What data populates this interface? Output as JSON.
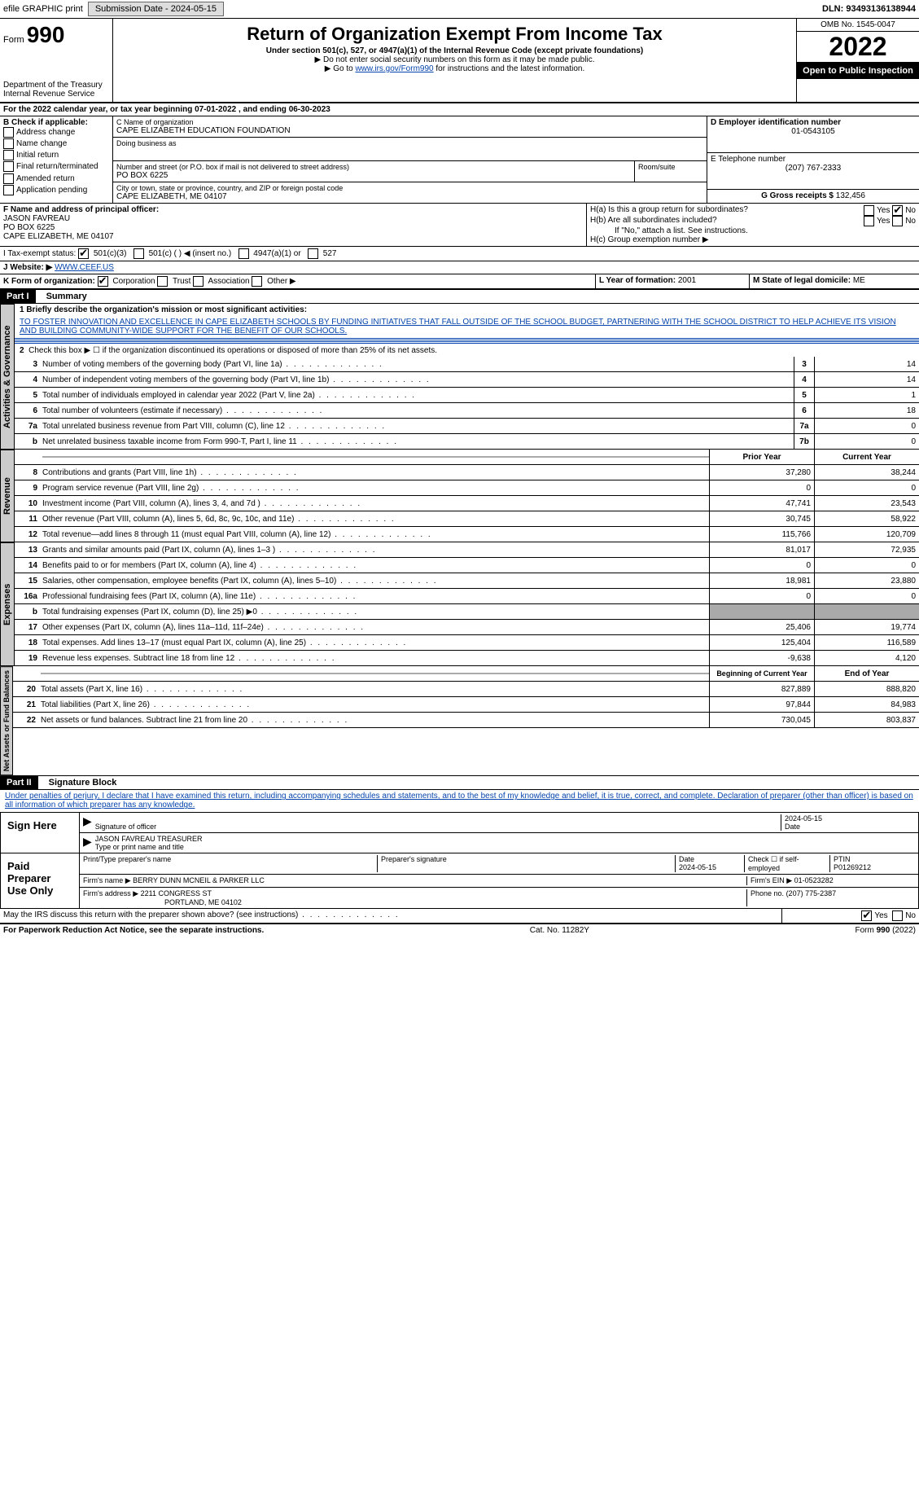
{
  "topbar": {
    "efile": "efile GRAPHIC print",
    "submission_label": "Submission Date - 2024-05-15",
    "dln": "DLN: 93493136138944"
  },
  "header": {
    "form_label": "Form",
    "form_no": "990",
    "title": "Return of Organization Exempt From Income Tax",
    "sub": "Under section 501(c), 527, or 4947(a)(1) of the Internal Revenue Code (except private foundations)",
    "note1": "▶ Do not enter social security numbers on this form as it may be made public.",
    "note2_pre": "▶ Go to ",
    "note2_link": "www.irs.gov/Form990",
    "note2_post": " for instructions and the latest information.",
    "dept": "Department of the Treasury",
    "irs": "Internal Revenue Service",
    "omb": "OMB No. 1545-0047",
    "year": "2022",
    "open": "Open to Public Inspection"
  },
  "A": {
    "text": "For the 2022 calendar year, or tax year beginning 07-01-2022    , and ending 06-30-2023"
  },
  "B": {
    "label": "B Check if applicable:",
    "items": [
      "Address change",
      "Name change",
      "Initial return",
      "Final return/terminated",
      "Amended return",
      "Application pending"
    ]
  },
  "C": {
    "name_label": "C Name of organization",
    "name": "CAPE ELIZABETH EDUCATION FOUNDATION",
    "dba_label": "Doing business as",
    "dba": "",
    "street_label": "Number and street (or P.O. box if mail is not delivered to street address)",
    "room_label": "Room/suite",
    "street": "PO BOX 6225",
    "city_label": "City or town, state or province, country, and ZIP or foreign postal code",
    "city": "CAPE ELIZABETH, ME  04107"
  },
  "D": {
    "label": "D Employer identification number",
    "ein": "01-0543105"
  },
  "E": {
    "label": "E Telephone number",
    "phone": "(207) 767-2333"
  },
  "G": {
    "label": "G Gross receipts $",
    "amount": "132,456"
  },
  "F": {
    "label": "F  Name and address of principal officer:",
    "name": "JASON FAVREAU",
    "line2": "PO BOX 6225",
    "line3": "CAPE ELIZABETH, ME  04107"
  },
  "H": {
    "a": "H(a)  Is this a group return for subordinates?",
    "b": "H(b)  Are all subordinates included?",
    "note": "If \"No,\" attach a list. See instructions.",
    "c": "H(c)  Group exemption number ▶",
    "yes": "Yes",
    "no": "No"
  },
  "I": {
    "label": "I    Tax-exempt status:",
    "c3": "501(c)(3)",
    "c": "501(c) (    ) ◀ (insert no.)",
    "a": "4947(a)(1) or",
    "s": "527"
  },
  "J": {
    "label": "J    Website: ▶",
    "url": "WWW.CEEF.US"
  },
  "K": {
    "label": "K Form of organization:",
    "corp": "Corporation",
    "trust": "Trust",
    "assoc": "Association",
    "other": "Other ▶"
  },
  "L": {
    "label": "L Year of formation:",
    "val": "2001"
  },
  "M": {
    "label": "M State of legal domicile:",
    "val": "ME"
  },
  "part1": {
    "hdr": "Part I",
    "title": "Summary",
    "l1_label": "1  Briefly describe the organization's mission or most significant activities:",
    "l1_text": "TO FOSTER INNOVATION AND EXCELLENCE IN CAPE ELIZABETH SCHOOLS BY FUNDING INITIATIVES THAT FALL OUTSIDE OF THE SCHOOL BUDGET, PARTNERING WITH THE SCHOOL DISTRICT TO HELP ACHIEVE ITS VISION AND BUILDING COMMUNITY-WIDE SUPPORT FOR THE BENEFIT OF OUR SCHOOLS.",
    "l2": "Check this box ▶ ☐  if the organization discontinued its operations or disposed of more than 25% of its net assets.",
    "tabs": {
      "gov": "Activities & Governance",
      "rev": "Revenue",
      "exp": "Expenses",
      "net": "Net Assets or Fund Balances"
    },
    "th_prior": "Prior Year",
    "th_curr": "Current Year",
    "th_boy": "Beginning of Current Year",
    "th_eoy": "End of Year",
    "gov_lines": [
      {
        "n": "3",
        "t": "Number of voting members of the governing body (Part VI, line 1a)",
        "box": "3",
        "v": "14"
      },
      {
        "n": "4",
        "t": "Number of independent voting members of the governing body (Part VI, line 1b)",
        "box": "4",
        "v": "14"
      },
      {
        "n": "5",
        "t": "Total number of individuals employed in calendar year 2022 (Part V, line 2a)",
        "box": "5",
        "v": "1"
      },
      {
        "n": "6",
        "t": "Total number of volunteers (estimate if necessary)",
        "box": "6",
        "v": "18"
      },
      {
        "n": "7a",
        "t": "Total unrelated business revenue from Part VIII, column (C), line 12",
        "box": "7a",
        "v": "0"
      },
      {
        "n": "b",
        "t": "Net unrelated business taxable income from Form 990-T, Part I, line 11",
        "box": "7b",
        "v": "0"
      }
    ],
    "rev_lines": [
      {
        "n": "8",
        "t": "Contributions and grants (Part VIII, line 1h)",
        "p": "37,280",
        "c": "38,244"
      },
      {
        "n": "9",
        "t": "Program service revenue (Part VIII, line 2g)",
        "p": "0",
        "c": "0"
      },
      {
        "n": "10",
        "t": "Investment income (Part VIII, column (A), lines 3, 4, and 7d )",
        "p": "47,741",
        "c": "23,543"
      },
      {
        "n": "11",
        "t": "Other revenue (Part VIII, column (A), lines 5, 6d, 8c, 9c, 10c, and 11e)",
        "p": "30,745",
        "c": "58,922"
      },
      {
        "n": "12",
        "t": "Total revenue—add lines 8 through 11 (must equal Part VIII, column (A), line 12)",
        "p": "115,766",
        "c": "120,709"
      }
    ],
    "exp_lines": [
      {
        "n": "13",
        "t": "Grants and similar amounts paid (Part IX, column (A), lines 1–3 )",
        "p": "81,017",
        "c": "72,935"
      },
      {
        "n": "14",
        "t": "Benefits paid to or for members (Part IX, column (A), line 4)",
        "p": "0",
        "c": "0"
      },
      {
        "n": "15",
        "t": "Salaries, other compensation, employee benefits (Part IX, column (A), lines 5–10)",
        "p": "18,981",
        "c": "23,880"
      },
      {
        "n": "16a",
        "t": "Professional fundraising fees (Part IX, column (A), line 11e)",
        "p": "0",
        "c": "0"
      },
      {
        "n": "b",
        "t": "Total fundraising expenses (Part IX, column (D), line 25) ▶0",
        "p": "",
        "c": "",
        "shade": true
      },
      {
        "n": "17",
        "t": "Other expenses (Part IX, column (A), lines 11a–11d, 11f–24e)",
        "p": "25,406",
        "c": "19,774"
      },
      {
        "n": "18",
        "t": "Total expenses. Add lines 13–17 (must equal Part IX, column (A), line 25)",
        "p": "125,404",
        "c": "116,589"
      },
      {
        "n": "19",
        "t": "Revenue less expenses. Subtract line 18 from line 12",
        "p": "-9,638",
        "c": "4,120"
      }
    ],
    "net_lines": [
      {
        "n": "20",
        "t": "Total assets (Part X, line 16)",
        "p": "827,889",
        "c": "888,820"
      },
      {
        "n": "21",
        "t": "Total liabilities (Part X, line 26)",
        "p": "97,844",
        "c": "84,983"
      },
      {
        "n": "22",
        "t": "Net assets or fund balances. Subtract line 21 from line 20",
        "p": "730,045",
        "c": "803,837"
      }
    ]
  },
  "part2": {
    "hdr": "Part II",
    "title": "Signature Block",
    "perjury": "Under penalties of perjury, I declare that I have examined this return, including accompanying schedules and statements, and to the best of my knowledge and belief, it is true, correct, and complete. Declaration of preparer (other than officer) is based on all information of which preparer has any knowledge.",
    "sign_here": "Sign Here",
    "sig_officer": "Signature of officer",
    "date": "Date",
    "date_val": "2024-05-15",
    "name_title": "JASON FAVREAU  TREASURER",
    "name_title_label": "Type or print name and title",
    "paid": "Paid Preparer Use Only",
    "pp_name_label": "Print/Type preparer's name",
    "pp_sig_label": "Preparer's signature",
    "pp_date_label": "Date",
    "pp_date": "2024-05-15",
    "pp_check": "Check ☐ if self-employed",
    "ptin_label": "PTIN",
    "ptin": "P01269212",
    "firm_name_label": "Firm's name    ▶",
    "firm_name": "BERRY DUNN MCNEIL & PARKER LLC",
    "firm_ein_label": "Firm's EIN ▶",
    "firm_ein": "01-0523282",
    "firm_addr_label": "Firm's address ▶",
    "firm_addr": "2211 CONGRESS ST",
    "firm_city": "PORTLAND, ME  04102",
    "firm_phone_label": "Phone no.",
    "firm_phone": "(207) 775-2387",
    "may_irs": "May the IRS discuss this return with the preparer shown above? (see instructions)",
    "yes": "Yes",
    "no": "No"
  },
  "footer": {
    "pra": "For Paperwork Reduction Act Notice, see the separate instructions.",
    "cat": "Cat. No. 11282Y",
    "form": "Form 990 (2022)"
  }
}
